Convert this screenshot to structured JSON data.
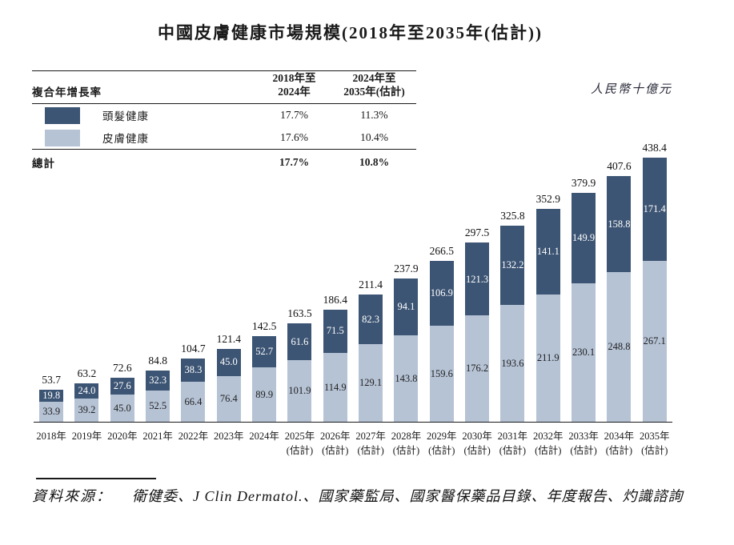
{
  "title": "中國皮膚健康市場規模(2018年至2035年(估計))",
  "unit_label": "人民幣十億元",
  "colors": {
    "hair_health_dark": "#3d5574",
    "skin_health_light": "#b6c3d5",
    "axis": "#1a1a1a"
  },
  "cagr_table": {
    "header": {
      "label": "複合年增長率",
      "col1_line1": "2018年至",
      "col1_line2": "2024年",
      "col2_line1": "2024年至",
      "col2_line2": "2035年(估計)"
    },
    "rows": [
      {
        "label": "頭髮健康",
        "color": "#3d5574",
        "cagr_2018_2024": "17.7%",
        "cagr_2024_2035": "11.3%"
      },
      {
        "label": "皮膚健康",
        "color": "#b6c3d5",
        "cagr_2018_2024": "17.6%",
        "cagr_2024_2035": "10.4%"
      }
    ],
    "total": {
      "label": "總計",
      "cagr_2018_2024": "17.7%",
      "cagr_2024_2035": "10.8%"
    }
  },
  "chart_data": {
    "type": "bar",
    "stacked": true,
    "title": "中國皮膚健康市場規模(2018年至2035年(估計))",
    "ylabel": "人民幣十億元",
    "ylim": [
      0,
      438.4
    ],
    "grid": false,
    "legend_position": "top-left-table",
    "categories": [
      {
        "year": "2018年",
        "note": ""
      },
      {
        "year": "2019年",
        "note": ""
      },
      {
        "year": "2020年",
        "note": ""
      },
      {
        "year": "2021年",
        "note": ""
      },
      {
        "year": "2022年",
        "note": ""
      },
      {
        "year": "2023年",
        "note": ""
      },
      {
        "year": "2024年",
        "note": ""
      },
      {
        "year": "2025年",
        "note": "(估計)"
      },
      {
        "year": "2026年",
        "note": "(估計)"
      },
      {
        "year": "2027年",
        "note": "(估計)"
      },
      {
        "year": "2028年",
        "note": "(估計)"
      },
      {
        "year": "2029年",
        "note": "(估計)"
      },
      {
        "year": "2030年",
        "note": "(估計)"
      },
      {
        "year": "2031年",
        "note": "(估計)"
      },
      {
        "year": "2032年",
        "note": "(估計)"
      },
      {
        "year": "2033年",
        "note": "(估計)"
      },
      {
        "year": "2034年",
        "note": "(估計)"
      },
      {
        "year": "2035年",
        "note": "(估計)"
      }
    ],
    "series": [
      {
        "name": "頭髮健康",
        "color": "#3d5574",
        "label_color": "#ffffff",
        "values": [
          19.8,
          24.0,
          27.6,
          32.3,
          38.3,
          45.0,
          52.7,
          61.6,
          71.5,
          82.3,
          94.1,
          106.9,
          121.3,
          132.2,
          141.1,
          149.9,
          158.8,
          171.4
        ]
      },
      {
        "name": "皮膚健康",
        "color": "#b6c3d5",
        "label_color": "#1f1f1f",
        "values": [
          33.9,
          39.2,
          45.0,
          52.5,
          66.4,
          76.4,
          89.9,
          101.9,
          114.9,
          129.1,
          143.8,
          159.6,
          176.2,
          193.6,
          211.9,
          230.1,
          248.8,
          267.1
        ]
      }
    ],
    "totals": [
      53.7,
      63.2,
      72.6,
      84.8,
      104.7,
      121.4,
      142.5,
      163.5,
      186.4,
      211.4,
      237.9,
      266.5,
      297.5,
      325.8,
      352.9,
      379.9,
      407.6,
      438.4
    ]
  },
  "source": {
    "label": "資料來源：",
    "text": "衛健委、J Clin Dermatol.、國家藥監局、國家醫保藥品目錄、年度報告、灼識諮詢"
  }
}
